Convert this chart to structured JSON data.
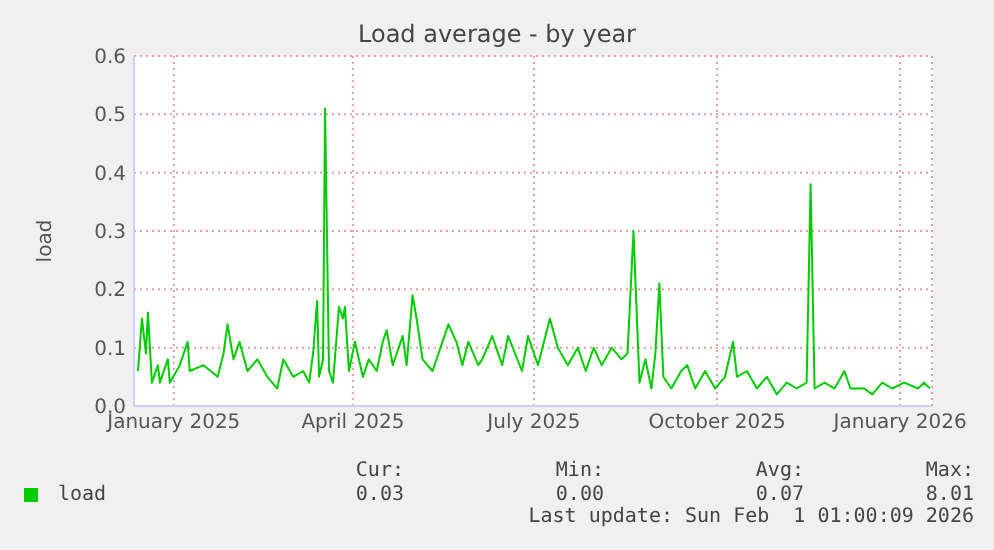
{
  "chart_data": {
    "type": "line",
    "title": "Load average - by year",
    "ylabel": "load",
    "x": [
      "2024-12-29",
      "2024-12-31",
      "2025-01-02",
      "2025-01-03",
      "2025-01-05",
      "2025-01-08",
      "2025-01-09",
      "2025-01-13",
      "2025-01-14",
      "2025-01-19",
      "2025-01-23",
      "2025-01-24",
      "2025-01-31",
      "2025-02-07",
      "2025-02-10",
      "2025-02-12",
      "2025-02-15",
      "2025-02-18",
      "2025-02-22",
      "2025-02-27",
      "2025-03-04",
      "2025-03-09",
      "2025-03-12",
      "2025-03-17",
      "2025-03-22",
      "2025-03-25",
      "2025-03-27",
      "2025-03-29",
      "2025-03-30",
      "2025-04-01",
      "2025-04-02",
      "2025-04-04",
      "2025-04-06",
      "2025-04-09",
      "2025-04-11",
      "2025-04-12",
      "2025-04-14",
      "2025-04-17",
      "2025-04-21",
      "2025-04-24",
      "2025-04-28",
      "2025-05-01",
      "2025-05-03",
      "2025-05-06",
      "2025-05-11",
      "2025-05-13",
      "2025-05-16",
      "2025-05-18",
      "2025-05-21",
      "2025-05-26",
      "2025-05-31",
      "2025-06-03",
      "2025-06-07",
      "2025-06-10",
      "2025-06-13",
      "2025-06-18",
      "2025-06-20",
      "2025-06-25",
      "2025-06-30",
      "2025-07-03",
      "2025-07-10",
      "2025-07-13",
      "2025-07-18",
      "2025-07-24",
      "2025-07-28",
      "2025-08-02",
      "2025-08-07",
      "2025-08-11",
      "2025-08-15",
      "2025-08-19",
      "2025-08-24",
      "2025-08-29",
      "2025-09-01",
      "2025-09-04",
      "2025-09-07",
      "2025-09-10",
      "2025-09-13",
      "2025-09-15",
      "2025-09-17",
      "2025-09-19",
      "2025-09-23",
      "2025-09-28",
      "2025-10-01",
      "2025-10-05",
      "2025-10-10",
      "2025-10-15",
      "2025-10-20",
      "2025-10-24",
      "2025-10-26",
      "2025-10-31",
      "2025-11-05",
      "2025-11-10",
      "2025-11-15",
      "2025-11-20",
      "2025-11-25",
      "2025-11-30",
      "2025-12-02",
      "2025-12-04",
      "2025-12-09",
      "2025-12-14",
      "2025-12-19",
      "2025-12-22",
      "2025-12-29",
      "2026-01-02",
      "2026-01-07",
      "2026-01-12",
      "2026-01-18",
      "2026-01-25",
      "2026-01-28",
      "2026-01-31"
    ],
    "series": [
      {
        "name": "load",
        "color": "#00cc00",
        "values": [
          0.06,
          0.15,
          0.09,
          0.16,
          0.04,
          0.07,
          0.04,
          0.08,
          0.04,
          0.07,
          0.11,
          0.06,
          0.07,
          0.05,
          0.09,
          0.14,
          0.08,
          0.11,
          0.06,
          0.08,
          0.05,
          0.03,
          0.08,
          0.05,
          0.06,
          0.04,
          0.09,
          0.18,
          0.05,
          0.08,
          0.51,
          0.06,
          0.04,
          0.17,
          0.15,
          0.17,
          0.06,
          0.11,
          0.05,
          0.08,
          0.06,
          0.11,
          0.13,
          0.07,
          0.12,
          0.07,
          0.19,
          0.15,
          0.08,
          0.06,
          0.11,
          0.14,
          0.11,
          0.07,
          0.11,
          0.07,
          0.08,
          0.12,
          0.07,
          0.12,
          0.06,
          0.12,
          0.07,
          0.15,
          0.1,
          0.07,
          0.1,
          0.06,
          0.1,
          0.07,
          0.1,
          0.08,
          0.09,
          0.3,
          0.04,
          0.08,
          0.03,
          0.09,
          0.21,
          0.05,
          0.03,
          0.06,
          0.07,
          0.03,
          0.06,
          0.03,
          0.05,
          0.11,
          0.05,
          0.06,
          0.03,
          0.05,
          0.02,
          0.04,
          0.03,
          0.04,
          0.38,
          0.03,
          0.04,
          0.03,
          0.06,
          0.03,
          0.03,
          0.02,
          0.04,
          0.03,
          0.04,
          0.03,
          0.04,
          0.03
        ]
      }
    ],
    "xlim": [
      "2024-12-27",
      "2026-02-01"
    ],
    "xticks": [
      {
        "value": "2025-01-16",
        "label": "January 2025"
      },
      {
        "value": "2025-04-16",
        "label": "April 2025"
      },
      {
        "value": "2025-07-16",
        "label": "July 2025"
      },
      {
        "value": "2025-10-16",
        "label": "October 2025"
      },
      {
        "value": "2026-01-16",
        "label": "January 2026"
      }
    ],
    "ylim": [
      0,
      0.6
    ],
    "yticks": [
      {
        "value": 0,
        "label": "0.0"
      },
      {
        "value": 0.1,
        "label": "0.1"
      },
      {
        "value": 0.2,
        "label": "0.2"
      },
      {
        "value": 0.3,
        "label": "0.3"
      },
      {
        "value": 0.4,
        "label": "0.4"
      },
      {
        "value": 0.5,
        "label": "0.5"
      },
      {
        "value": 0.6,
        "label": "0.6"
      }
    ],
    "grid": true,
    "legend": "bottom left",
    "marker": "none",
    "line_style": "solid",
    "annotations": [
      "Cur:",
      "0.03",
      "Min:",
      "0.00",
      "Avg:",
      "0.07",
      "Max:",
      "8.01",
      "Last update: Sun Feb  1 01:00:09 2026"
    ]
  }
}
